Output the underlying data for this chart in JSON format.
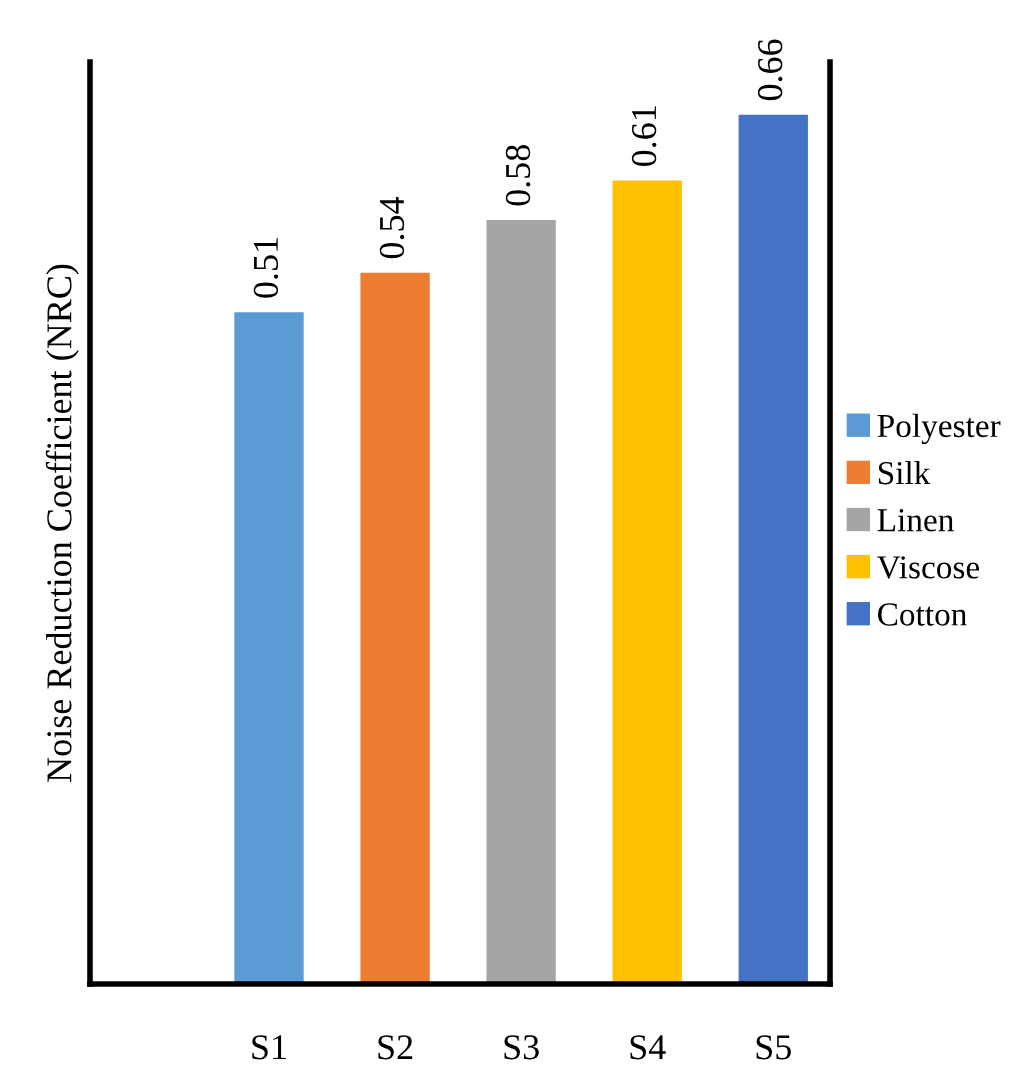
{
  "chart_data": {
    "type": "bar",
    "ylabel": "Noise Reduction Coefficient (NRC)",
    "categories": [
      "S1",
      "S2",
      "S3",
      "S4",
      "S5"
    ],
    "series": [
      {
        "name": "Polyester",
        "color": "#5b9bd5",
        "values": [
          0.51,
          null,
          null,
          null,
          null
        ]
      },
      {
        "name": "Silk",
        "color": "#ed7d31",
        "values": [
          null,
          0.54,
          null,
          null,
          null
        ]
      },
      {
        "name": "Linen",
        "color": "#a5a5a5",
        "values": [
          null,
          null,
          0.58,
          null,
          null
        ]
      },
      {
        "name": "Viscose",
        "color": "#ffc000",
        "values": [
          null,
          null,
          null,
          0.61,
          null
        ]
      },
      {
        "name": "Cotton",
        "color": "#4472c4",
        "values": [
          null,
          null,
          null,
          null,
          0.66
        ]
      }
    ],
    "ylim": [
      0,
      0.7
    ],
    "tick_labels": "x",
    "data_labels": true,
    "grid": false,
    "legend": "right"
  }
}
